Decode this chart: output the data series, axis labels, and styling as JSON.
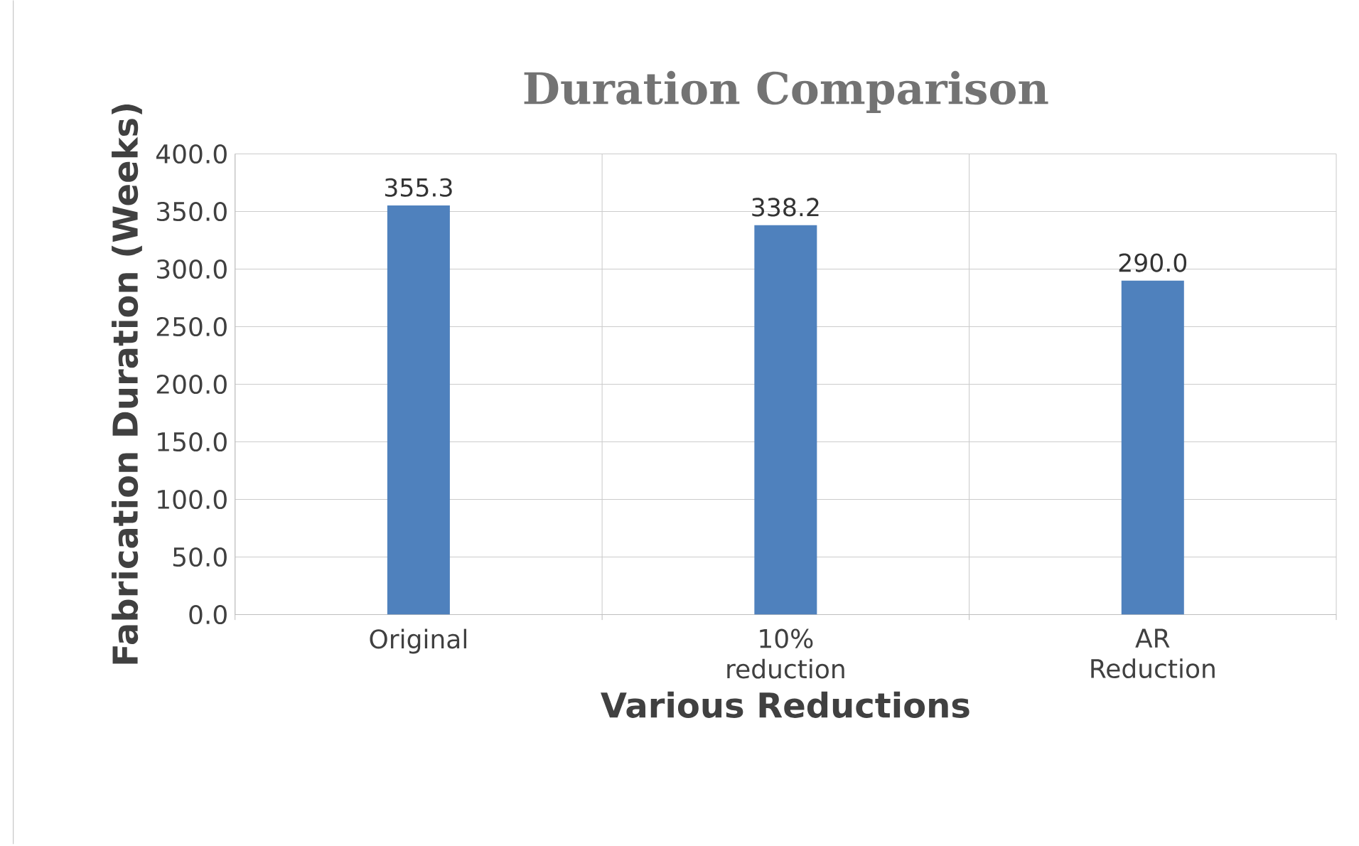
{
  "chart_data": {
    "type": "bar",
    "title": "Duration Comparison",
    "xlabel": "Various Reductions",
    "ylabel": "Fabrication Duration (Weeks)",
    "categories": [
      "Original",
      "10% reduction",
      "AR Reduction"
    ],
    "values": [
      355.3,
      338.2,
      290
    ],
    "value_labels": [
      "355.3",
      "338.2",
      "290.0"
    ],
    "color": "#4f81bd",
    "ylim": [
      0,
      400
    ],
    "yticks": [
      {
        "value": 0,
        "label": "0.0"
      },
      {
        "value": 50,
        "label": "50.0"
      },
      {
        "value": 100,
        "label": "100.0"
      },
      {
        "value": 150,
        "label": "150.0"
      },
      {
        "value": 200,
        "label": "200.0"
      },
      {
        "value": 250,
        "label": "250.0"
      },
      {
        "value": 300,
        "label": "300.0"
      },
      {
        "value": 350,
        "label": "350.0"
      },
      {
        "value": 400,
        "label": "400.0"
      }
    ],
    "grid": true
  }
}
